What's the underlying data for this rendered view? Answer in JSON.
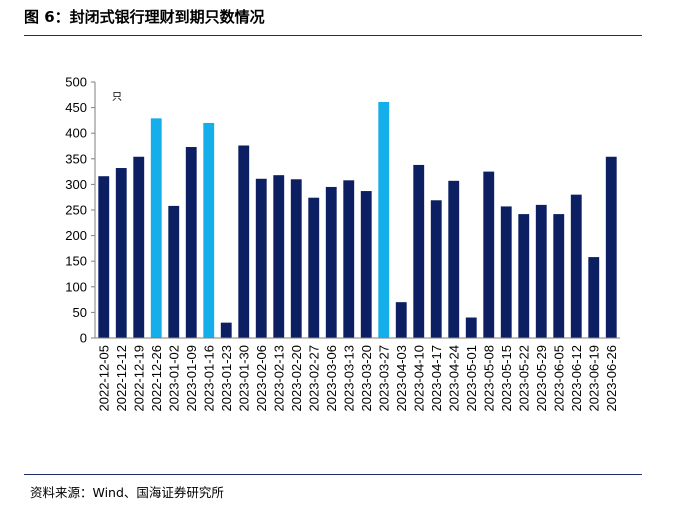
{
  "figure": {
    "title": "图 6：封闭式银行理财到期只数情况",
    "source": "资料来源：Wind、国海证券研究所"
  },
  "chart_data": {
    "type": "bar",
    "title": "封闭式银行理财到期只数情况",
    "ylabel": "只",
    "xlabel": "",
    "ylim": [
      0,
      500
    ],
    "yticks": [
      0,
      50,
      100,
      150,
      200,
      250,
      300,
      350,
      400,
      450,
      500
    ],
    "grid": false,
    "colors": {
      "normal": "#0d1f63",
      "highlight": "#14aeea"
    },
    "categories": [
      "2022-12-05",
      "2022-12-12",
      "2022-12-19",
      "2022-12-26",
      "2023-01-02",
      "2023-01-09",
      "2023-01-16",
      "2023-01-23",
      "2023-01-30",
      "2023-02-06",
      "2023-02-13",
      "2023-02-20",
      "2023-02-27",
      "2023-03-06",
      "2023-03-13",
      "2023-03-20",
      "2023-03-27",
      "2023-04-03",
      "2023-04-10",
      "2023-04-17",
      "2023-04-24",
      "2023-05-01",
      "2023-05-08",
      "2023-05-15",
      "2023-05-22",
      "2023-05-29",
      "2023-06-05",
      "2023-06-12",
      "2023-06-19",
      "2023-06-26"
    ],
    "values": [
      316,
      332,
      354,
      429,
      258,
      373,
      420,
      30,
      376,
      311,
      318,
      310,
      274,
      295,
      308,
      287,
      461,
      70,
      338,
      269,
      307,
      40,
      325,
      257,
      242,
      260,
      242,
      280,
      158,
      354
    ],
    "highlighted": [
      false,
      false,
      false,
      true,
      false,
      false,
      true,
      false,
      false,
      false,
      false,
      false,
      false,
      false,
      false,
      false,
      true,
      false,
      false,
      false,
      false,
      false,
      false,
      false,
      false,
      false,
      false,
      false,
      false,
      false
    ]
  }
}
